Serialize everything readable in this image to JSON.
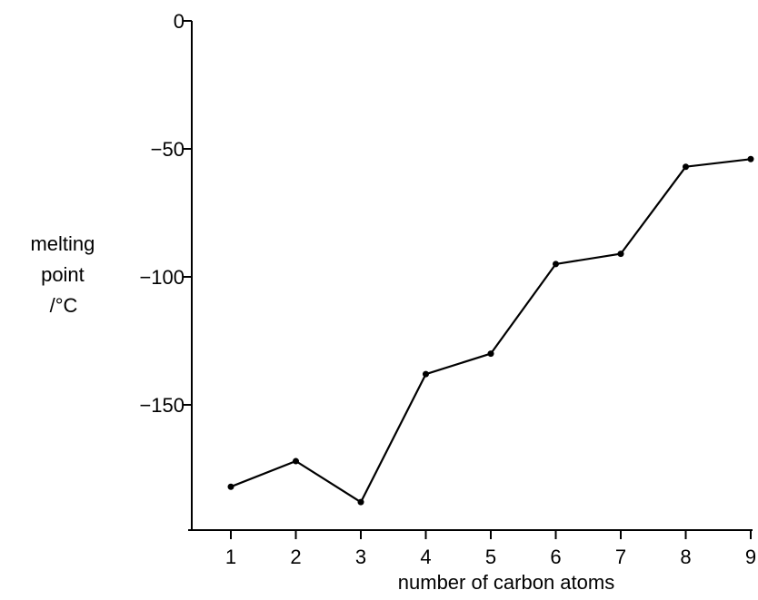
{
  "chart_data": {
    "type": "line",
    "x": [
      1,
      2,
      3,
      4,
      5,
      6,
      7,
      8,
      9
    ],
    "series": [
      {
        "values": [
          -182,
          -172,
          -188,
          -138,
          -130,
          -95,
          -91,
          -57,
          -54
        ]
      }
    ],
    "xlabel": "number of carbon atoms",
    "ylabel_lines": [
      "melting",
      "point",
      "/°C"
    ],
    "xlim": [
      0.2,
      9
    ],
    "ylim": [
      -200,
      0
    ],
    "xticks": [
      1,
      2,
      3,
      4,
      5,
      6,
      7,
      8,
      9
    ],
    "yticks": [
      0,
      -50,
      -100,
      -150
    ],
    "ytick_labels": [
      "0",
      "−50",
      "−100",
      "−150"
    ],
    "grid": false,
    "line_color": "#000000",
    "marker_color": "#000000"
  }
}
